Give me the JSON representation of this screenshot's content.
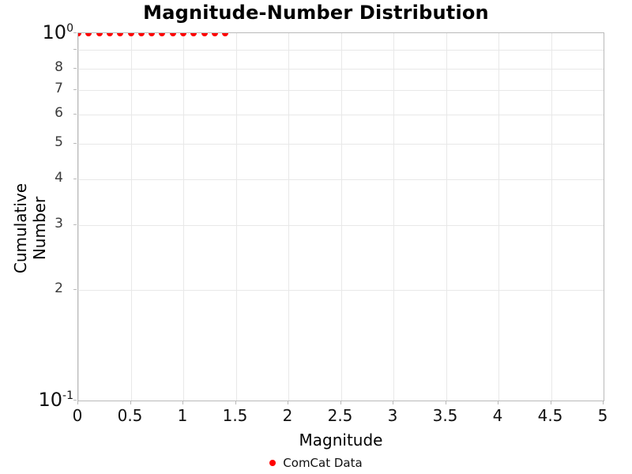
{
  "colors": {
    "series_red": "#ff0000",
    "axis_line": "#b9b9b9",
    "gridline": "#e8e8e8",
    "tick_label": "#3a3a3a",
    "text": "#000000"
  },
  "chart_data": {
    "type": "scatter",
    "title": "Magnitude-Number Distribution",
    "xlabel": "Magnitude",
    "ylabel": "Cumulative Number",
    "xlim": [
      0,
      5
    ],
    "x_tick_values": [
      0,
      0.5,
      1,
      1.5,
      2,
      2.5,
      3,
      3.5,
      4,
      4.5,
      5
    ],
    "x_tick_labels": [
      "0",
      "0.5",
      "1",
      "1.5",
      "2",
      "2.5",
      "3",
      "3.5",
      "4",
      "4.5",
      "5"
    ],
    "y_scale": "log",
    "ylim": [
      0.1,
      1.0
    ],
    "y_major_ticks": [
      {
        "value": 1.0,
        "base": "10",
        "exponent": "0"
      },
      {
        "value": 0.1,
        "base": "10",
        "exponent": "-1"
      }
    ],
    "y_minor_ticks": [
      {
        "value": 0.9,
        "label": ""
      },
      {
        "value": 0.8,
        "label": "8"
      },
      {
        "value": 0.7,
        "label": "7"
      },
      {
        "value": 0.6,
        "label": "6"
      },
      {
        "value": 0.5,
        "label": "5"
      },
      {
        "value": 0.4,
        "label": "4"
      },
      {
        "value": 0.3,
        "label": "3"
      },
      {
        "value": 0.2,
        "label": "2"
      }
    ],
    "grid": true,
    "legend": {
      "position": "bottom-center",
      "entries": [
        {
          "label": "ComCat Data",
          "color": "#ff0000",
          "marker": "circle"
        }
      ]
    },
    "series": [
      {
        "name": "ComCat Data",
        "color": "#ff0000",
        "marker": "circle",
        "x": [
          0.0,
          0.1,
          0.2,
          0.3,
          0.4,
          0.5,
          0.6,
          0.7,
          0.8,
          0.9,
          1.0,
          1.1,
          1.2,
          1.3,
          1.4
        ],
        "y": [
          1,
          1,
          1,
          1,
          1,
          1,
          1,
          1,
          1,
          1,
          1,
          1,
          1,
          1,
          1
        ]
      }
    ]
  }
}
